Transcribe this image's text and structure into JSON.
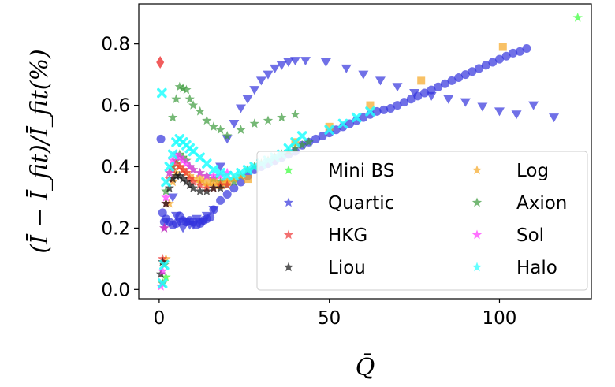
{
  "chart_data": {
    "type": "scatter",
    "xlabel": "Q̄",
    "ylabel": "(Ī − Ī_fit)/Ī_fit(%)",
    "xlim": [
      -6,
      127
    ],
    "ylim": [
      -0.03,
      0.93
    ],
    "xticks": [
      0,
      50,
      100
    ],
    "xtick_labels": [
      "0",
      "50",
      "100"
    ],
    "yticks": [
      0.0,
      0.2,
      0.4,
      0.6,
      0.8
    ],
    "ytick_labels": [
      "0.0",
      "0.2",
      "0.4",
      "0.6",
      "0.8"
    ],
    "grid": false,
    "legend_position": "lower-right",
    "legend": [
      {
        "name": "Mini BS",
        "color": "#33ff33"
      },
      {
        "name": "Log",
        "color": "#f5a623"
      },
      {
        "name": "Quartic",
        "color": "#3333dd"
      },
      {
        "name": "Axion",
        "color": "#3a9a3a"
      },
      {
        "name": "HKG",
        "color": "#ee3333"
      },
      {
        "name": "Sol",
        "color": "#ff33ff"
      },
      {
        "name": "Liou",
        "color": "#111111"
      },
      {
        "name": "Halo",
        "color": "#22ffff"
      }
    ],
    "series": [
      {
        "name": "Quartic circles",
        "marker": "circle",
        "color": "#3333dd",
        "x": [
          0.5,
          1,
          1.5,
          2,
          3,
          4,
          5,
          6,
          7,
          8,
          9,
          10,
          11,
          12,
          13,
          14,
          15,
          16,
          18,
          20,
          22,
          24,
          26,
          28,
          30,
          32,
          34,
          36,
          38,
          40,
          42,
          44,
          46,
          48,
          50,
          52,
          54,
          56,
          58,
          60,
          62,
          64,
          66,
          68,
          70,
          72,
          74,
          76,
          78,
          80,
          82,
          84,
          86,
          88,
          90,
          92,
          94,
          96,
          98,
          100,
          102,
          104,
          106,
          108
        ],
        "y": [
          0.49,
          0.25,
          0.22,
          0.23,
          0.22,
          0.21,
          0.215,
          0.24,
          0.225,
          0.22,
          0.225,
          0.22,
          0.21,
          0.215,
          0.225,
          0.23,
          0.235,
          0.26,
          0.29,
          0.31,
          0.33,
          0.35,
          0.37,
          0.39,
          0.4,
          0.41,
          0.42,
          0.43,
          0.44,
          0.45,
          0.47,
          0.48,
          0.49,
          0.5,
          0.51,
          0.52,
          0.53,
          0.54,
          0.55,
          0.56,
          0.57,
          0.58,
          0.585,
          0.59,
          0.6,
          0.61,
          0.62,
          0.63,
          0.64,
          0.65,
          0.66,
          0.67,
          0.68,
          0.69,
          0.7,
          0.71,
          0.72,
          0.73,
          0.74,
          0.75,
          0.76,
          0.77,
          0.775,
          0.785
        ]
      },
      {
        "name": "Quartic triangles",
        "marker": "triangle",
        "color": "#3333dd",
        "x": [
          4,
          5,
          6,
          7,
          8,
          9,
          10,
          11,
          12,
          13,
          14,
          16,
          18,
          20,
          22,
          24,
          26,
          28,
          30,
          32,
          34,
          36,
          38,
          40,
          43,
          49,
          55,
          60,
          65,
          70,
          75,
          80,
          85,
          90,
          95,
          100,
          105,
          110,
          116
        ],
        "y": [
          0.3,
          0.24,
          0.22,
          0.2,
          0.22,
          0.21,
          0.21,
          0.23,
          0.22,
          0.22,
          0.24,
          0.26,
          0.4,
          0.49,
          0.54,
          0.59,
          0.62,
          0.65,
          0.68,
          0.7,
          0.72,
          0.73,
          0.74,
          0.745,
          0.745,
          0.74,
          0.72,
          0.7,
          0.68,
          0.66,
          0.64,
          0.63,
          0.62,
          0.61,
          0.595,
          0.58,
          0.57,
          0.6,
          0.56
        ]
      },
      {
        "name": "Mini BS",
        "marker": "star",
        "color": "#33ff33",
        "x": [
          2,
          123
        ],
        "y": [
          0.04,
          0.885
        ]
      },
      {
        "name": "Axion",
        "marker": "star",
        "color": "#3a9a3a",
        "x": [
          1,
          1.5,
          2,
          3,
          4,
          5,
          6,
          7,
          8,
          9,
          10,
          12,
          14,
          16,
          18,
          20,
          22,
          24,
          26,
          28,
          30,
          32,
          34,
          36,
          38,
          40,
          42,
          44
        ],
        "y": [
          0.02,
          0.08,
          0.32,
          0.38,
          0.4,
          0.42,
          0.44,
          0.43,
          0.42,
          0.4,
          0.39,
          0.38,
          0.37,
          0.36,
          0.35,
          0.34,
          0.35,
          0.37,
          0.39,
          0.4,
          0.41,
          0.42,
          0.43,
          0.44,
          0.45,
          0.46,
          0.47,
          0.48
        ]
      },
      {
        "name": "Axion arc",
        "marker": "star",
        "color": "#3a9a3a",
        "x": [
          4,
          5,
          6,
          7,
          8,
          9,
          10,
          12,
          14,
          16,
          18,
          20,
          24,
          28,
          32,
          36,
          40
        ],
        "y": [
          0.56,
          0.62,
          0.66,
          0.655,
          0.65,
          0.62,
          0.6,
          0.58,
          0.55,
          0.53,
          0.52,
          0.5,
          0.52,
          0.54,
          0.55,
          0.56,
          0.57
        ]
      },
      {
        "name": "Log",
        "marker": "star",
        "color": "#f5a623",
        "x": [
          2,
          3,
          4,
          5,
          6,
          7,
          8,
          9,
          10,
          12,
          14,
          16,
          18,
          20,
          22,
          24
        ],
        "y": [
          0.1,
          0.28,
          0.35,
          0.38,
          0.4,
          0.39,
          0.38,
          0.37,
          0.36,
          0.35,
          0.34,
          0.34,
          0.34,
          0.35,
          0.36,
          0.37
        ]
      },
      {
        "name": "Log squares",
        "marker": "square",
        "color": "#f5a623",
        "x": [
          12,
          14,
          16,
          18,
          20,
          26,
          40,
          50,
          62,
          77,
          101
        ],
        "y": [
          0.36,
          0.35,
          0.35,
          0.34,
          0.35,
          0.36,
          0.48,
          0.53,
          0.6,
          0.68,
          0.79
        ]
      },
      {
        "name": "HKG",
        "marker": "star",
        "color": "#ee3333",
        "x": [
          1,
          2,
          3,
          4,
          5,
          6,
          7,
          8,
          9,
          10,
          12,
          14,
          16,
          18,
          20
        ],
        "y": [
          0.1,
          0.28,
          0.36,
          0.39,
          0.41,
          0.4,
          0.39,
          0.38,
          0.36,
          0.35,
          0.34,
          0.33,
          0.33,
          0.34,
          0.34
        ]
      },
      {
        "name": "HKG diamond",
        "marker": "diamond",
        "color": "#ee3333",
        "x": [
          0.3
        ],
        "y": [
          0.74
        ]
      },
      {
        "name": "Liou",
        "marker": "star",
        "color": "#111111",
        "x": [
          0.5,
          1,
          1.5,
          2,
          3,
          4,
          5,
          6,
          7,
          8,
          9,
          10,
          12,
          14,
          16,
          18
        ],
        "y": [
          0.05,
          0.09,
          0.2,
          0.28,
          0.33,
          0.36,
          0.37,
          0.37,
          0.36,
          0.35,
          0.34,
          0.33,
          0.32,
          0.32,
          0.33,
          0.33
        ]
      },
      {
        "name": "Sol",
        "marker": "star",
        "color": "#ff33ff",
        "x": [
          0.5,
          1,
          1.5,
          2,
          3,
          4,
          5,
          6,
          7,
          8,
          9,
          10,
          12,
          14,
          16,
          18,
          20
        ],
        "y": [
          0.01,
          0.06,
          0.2,
          0.3,
          0.38,
          0.42,
          0.44,
          0.43,
          0.42,
          0.41,
          0.4,
          0.39,
          0.38,
          0.37,
          0.37,
          0.37,
          0.38
        ]
      },
      {
        "name": "Halo",
        "marker": "x",
        "color": "#22ffff",
        "x": [
          0.8,
          1,
          1.5,
          2,
          3,
          4,
          5,
          6,
          7,
          8,
          9,
          10,
          12,
          14,
          16,
          18,
          20,
          22,
          24,
          26,
          28,
          30,
          32,
          34,
          36,
          38,
          40,
          42,
          50,
          54,
          58,
          62
        ],
        "y": [
          0.64,
          0.02,
          0.08,
          0.35,
          0.4,
          0.44,
          0.48,
          0.49,
          0.48,
          0.47,
          0.46,
          0.45,
          0.43,
          0.41,
          0.39,
          0.38,
          0.37,
          0.37,
          0.38,
          0.39,
          0.4,
          0.41,
          0.42,
          0.43,
          0.44,
          0.46,
          0.48,
          0.5,
          0.52,
          0.54,
          0.56,
          0.58
        ]
      }
    ]
  }
}
